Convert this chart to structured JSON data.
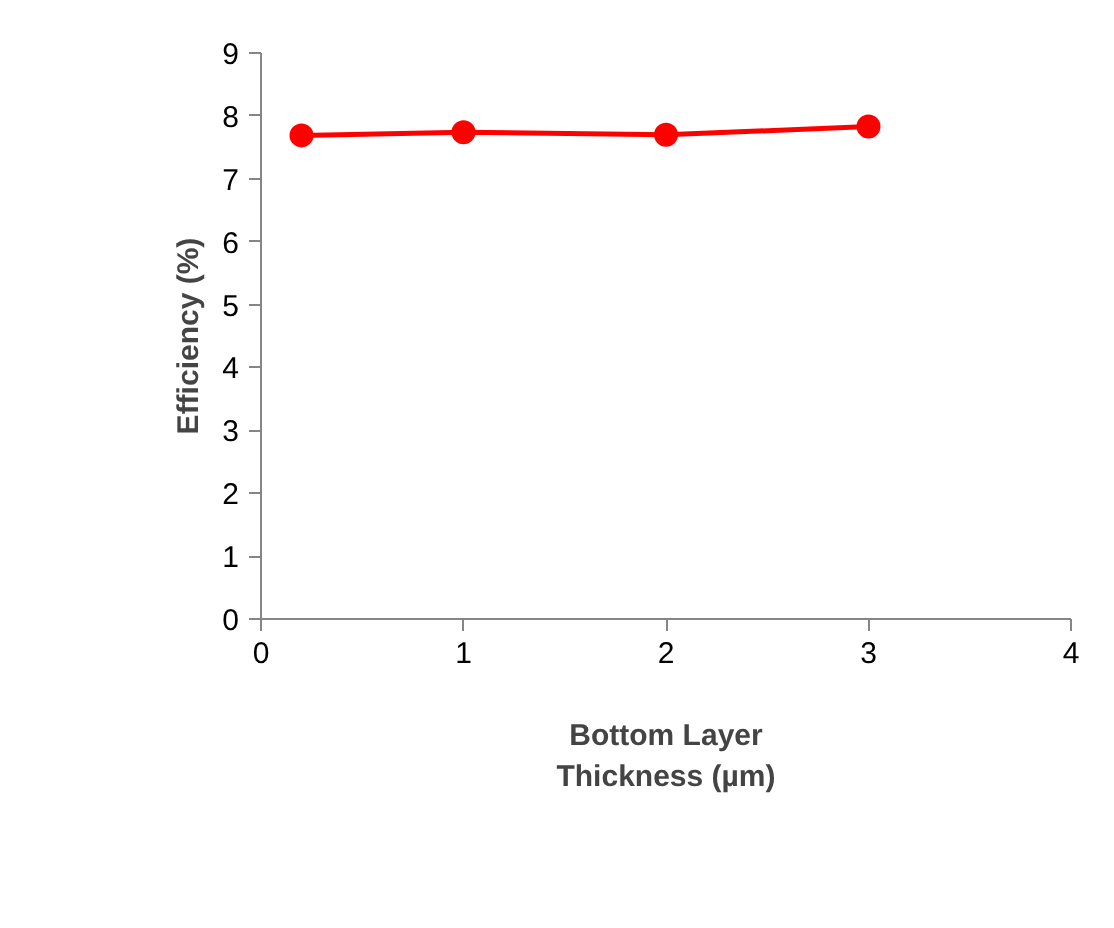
{
  "chart_data": {
    "type": "line",
    "xlabel": "Bottom Layer\nThickness (µm)",
    "ylabel": "Efficiency (%)",
    "x": [
      0.2,
      1,
      2,
      3
    ],
    "series": [
      {
        "color": "#ff0000",
        "values": [
          7.69,
          7.74,
          7.7,
          7.83
        ]
      }
    ],
    "xlim": [
      0,
      4
    ],
    "xticks": [
      0,
      1,
      2,
      3,
      4
    ],
    "ylim": [
      0,
      9
    ],
    "yticks": [
      0,
      1,
      2,
      3,
      4,
      5,
      6,
      7,
      8,
      9
    ],
    "grid": false,
    "marker": "circle",
    "line_style": "solid"
  }
}
